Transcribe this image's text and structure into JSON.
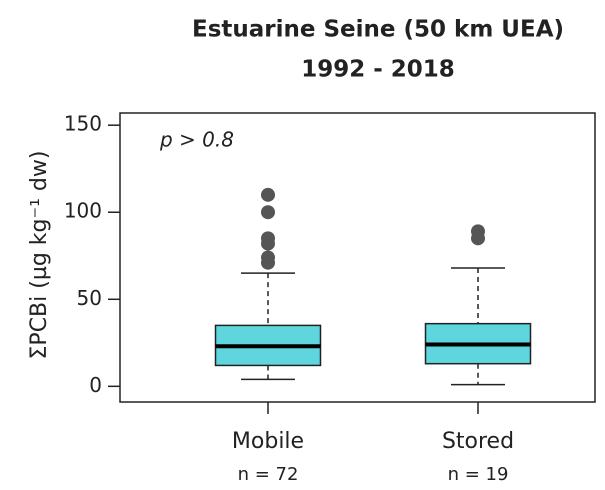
{
  "chart_data": {
    "type": "box",
    "title": [
      "Estuarine Seine (50 km UEA)",
      "1992 - 2018"
    ],
    "ylabel": "ΣPCBi (µg kg⁻¹ dw)",
    "annotation": "p > 0.8",
    "categories": [
      "Mobile",
      "Stored"
    ],
    "sample_sizes": [
      "n = 72",
      "n = 19"
    ],
    "boxes": [
      {
        "whislo": 4,
        "q1": 12,
        "med": 23,
        "q3": 35,
        "whishi": 65,
        "fliers": [
          110,
          100,
          85,
          82,
          74,
          71
        ]
      },
      {
        "whislo": 1,
        "q1": 13,
        "med": 24,
        "q3": 36,
        "whishi": 68,
        "fliers": [
          89,
          85
        ]
      }
    ],
    "color": "#5fd5de",
    "ylim": [
      -9,
      157
    ],
    "yticks": [
      0,
      50,
      100,
      150
    ]
  }
}
